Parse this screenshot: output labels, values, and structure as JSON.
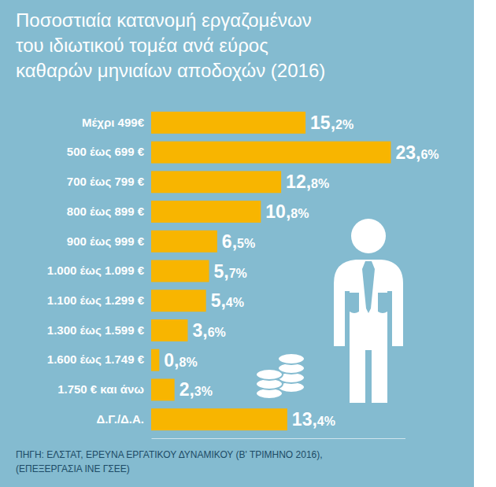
{
  "chart_data": {
    "type": "bar",
    "orientation": "horizontal",
    "title": "Ποσοστιαία κατανομή εργαζομένων\nτου ιδιωτικού τομέα ανά εύρος\nκαθαρών μηνιαίων αποδοχών (2016)",
    "categories": [
      "Μέχρι 499€",
      "500 έως 699 €",
      "700 έως 799 €",
      "800 έως 899 €",
      "900 έως 999 €",
      "1.000 έως 1.099 €",
      "1.100 έως 1.299 €",
      "1.300 έως 1.599 €",
      "1.600 έως 1.749 €",
      "1.750 € και άνω",
      "Δ.Γ./Δ.Α."
    ],
    "values": [
      15.2,
      23.6,
      12.8,
      10.8,
      6.5,
      5.7,
      5.4,
      3.6,
      0.8,
      2.3,
      13.4
    ],
    "value_labels": [
      "15,2%",
      "23,6%",
      "12,8%",
      "10,8%",
      "6,5%",
      "5,7%",
      "5,4%",
      "3,6%",
      "0,8%",
      "2,3%",
      "13,4%"
    ],
    "data_labels": true,
    "color": "#f8b500",
    "xlim": [
      0,
      25
    ],
    "tick_labels": "y",
    "source": "ΠΗΓΗ: ΕΛΣΤΑΤ, ΕΡΕΥΝΑ ΕΡΓΑΤΙΚΟΥ ΔΥΝΑΜΙΚΟΥ (Β' ΤΡΙΜΗΝΟ 2016),\n(ΕΠΕΞΕΡΓΑΣΙΑ ΙΝΕ ΓΣΕΕ)"
  }
}
